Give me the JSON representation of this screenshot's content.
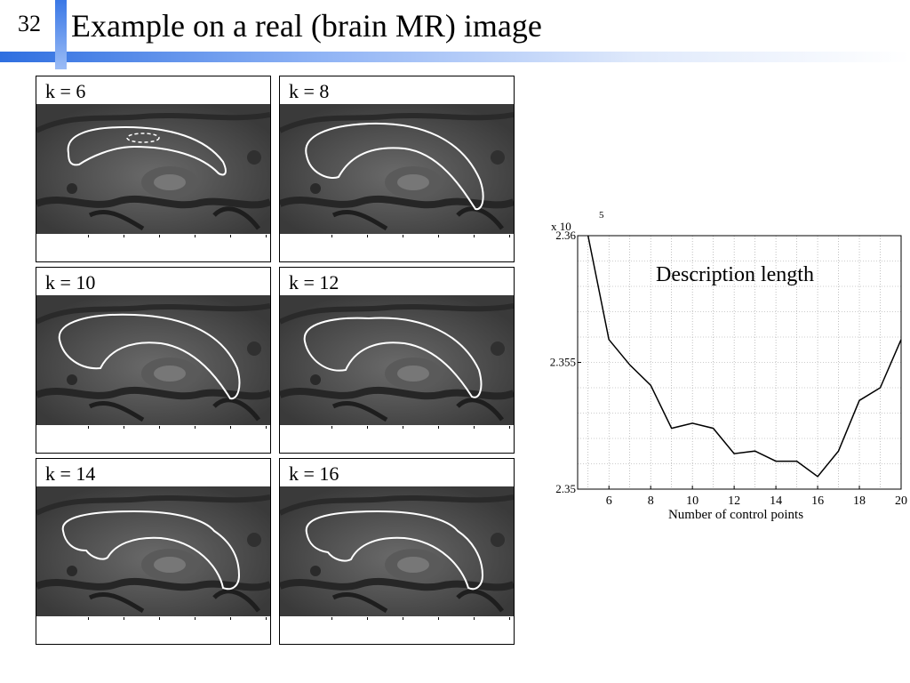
{
  "slide": {
    "number": "32",
    "title": "Example on a real (brain MR) image"
  },
  "panels": [
    {
      "label": "k = 6"
    },
    {
      "label": "k = 8"
    },
    {
      "label": "k = 10"
    },
    {
      "label": "k = 12"
    },
    {
      "label": "k = 14"
    },
    {
      "label": "k = 16"
    }
  ],
  "chart_data": {
    "type": "line",
    "title": "Description length",
    "xlabel": "Number of control points",
    "ylabel": "",
    "y_multiplier": "x 10",
    "y_multiplier_exponent": "5",
    "x": [
      5,
      6,
      7,
      8,
      9,
      10,
      11,
      12,
      13,
      14,
      15,
      16,
      17,
      18,
      19,
      20
    ],
    "series": [
      {
        "values": [
          2.3601,
          2.3559,
          2.3549,
          2.3541,
          2.3524,
          2.3526,
          2.3524,
          2.3514,
          2.3515,
          2.3511,
          2.3511,
          2.3505,
          2.3515,
          2.3535,
          2.354,
          2.3559
        ]
      }
    ],
    "xlim": [
      4.5,
      20
    ],
    "ylim": [
      2.35,
      2.36
    ],
    "xticks": [
      "6",
      "8",
      "10",
      "12",
      "14",
      "16",
      "18",
      "20"
    ],
    "yticks": [
      "2.35",
      "2.355",
      "2.36"
    ],
    "grid": true,
    "line_color": "#000000"
  }
}
